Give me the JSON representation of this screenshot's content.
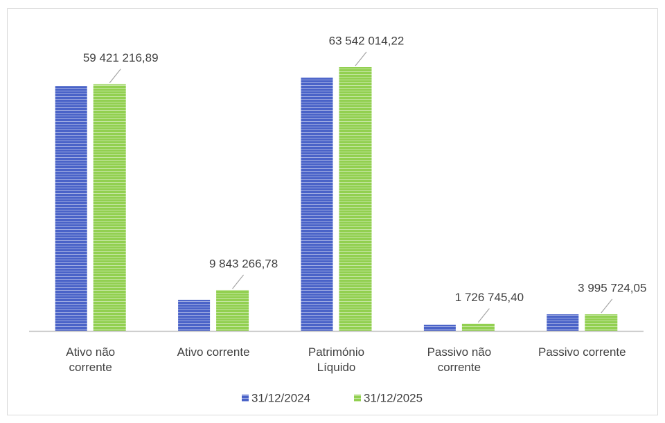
{
  "chart_data": {
    "type": "bar",
    "categories": [
      "Ativo não corrente",
      "Ativo corrente",
      "Património Líquido",
      "Passivo não corrente",
      "Passivo corrente"
    ],
    "series": [
      {
        "name": "31/12/2024",
        "color": "#4a63c8",
        "values": [
          59000000,
          7500000,
          61000000,
          1500000,
          4000000
        ]
      },
      {
        "name": "31/12/2025",
        "color": "#92d050",
        "values": [
          59421216.89,
          9843266.78,
          63542014.22,
          1726745.4,
          3995724.05
        ],
        "value_labels": [
          "59 421 216,89",
          "9 843 266,78",
          "63 542 014,22",
          "1 726 745,40",
          "3 995 724,05"
        ]
      }
    ],
    "legend": "bottom"
  }
}
